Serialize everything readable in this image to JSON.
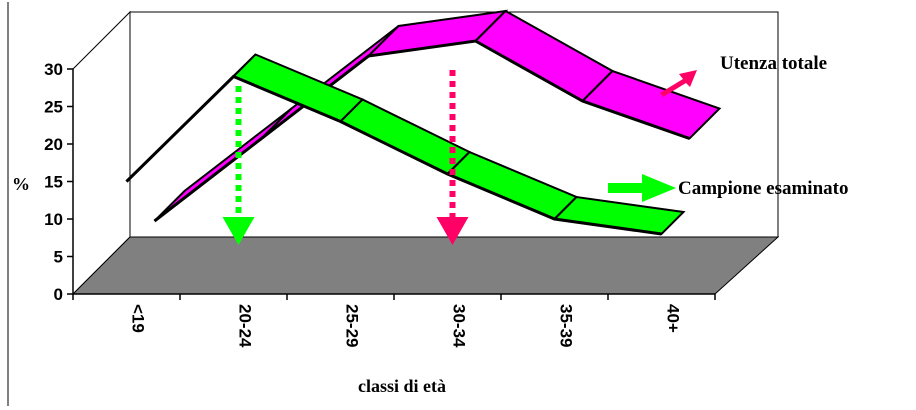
{
  "chart_data": {
    "type": "line",
    "style": "3d-ribbon",
    "categories": [
      "<19",
      "20-24",
      "25-29",
      "30-34",
      "35-39",
      "40+"
    ],
    "series": [
      {
        "name": "Utenza totale",
        "color": "#ff00ff",
        "values": [
          6,
          17,
          28,
          30,
          22,
          17
        ]
      },
      {
        "name": "Campione esaminato",
        "color": "#00ff00",
        "values": [
          15,
          29,
          23,
          16,
          10,
          8
        ]
      }
    ],
    "xlabel": "classi di età",
    "ylabel": "%",
    "ylim": [
      0,
      30
    ],
    "yticks": [
      0,
      5,
      10,
      15,
      20,
      25,
      30
    ],
    "grid": false,
    "legend": "right",
    "floor_color": "#808080",
    "markers": [
      {
        "category": "20-24",
        "color": "#00ff00"
      },
      {
        "category": "30-34",
        "color": "#ff0066"
      }
    ]
  }
}
